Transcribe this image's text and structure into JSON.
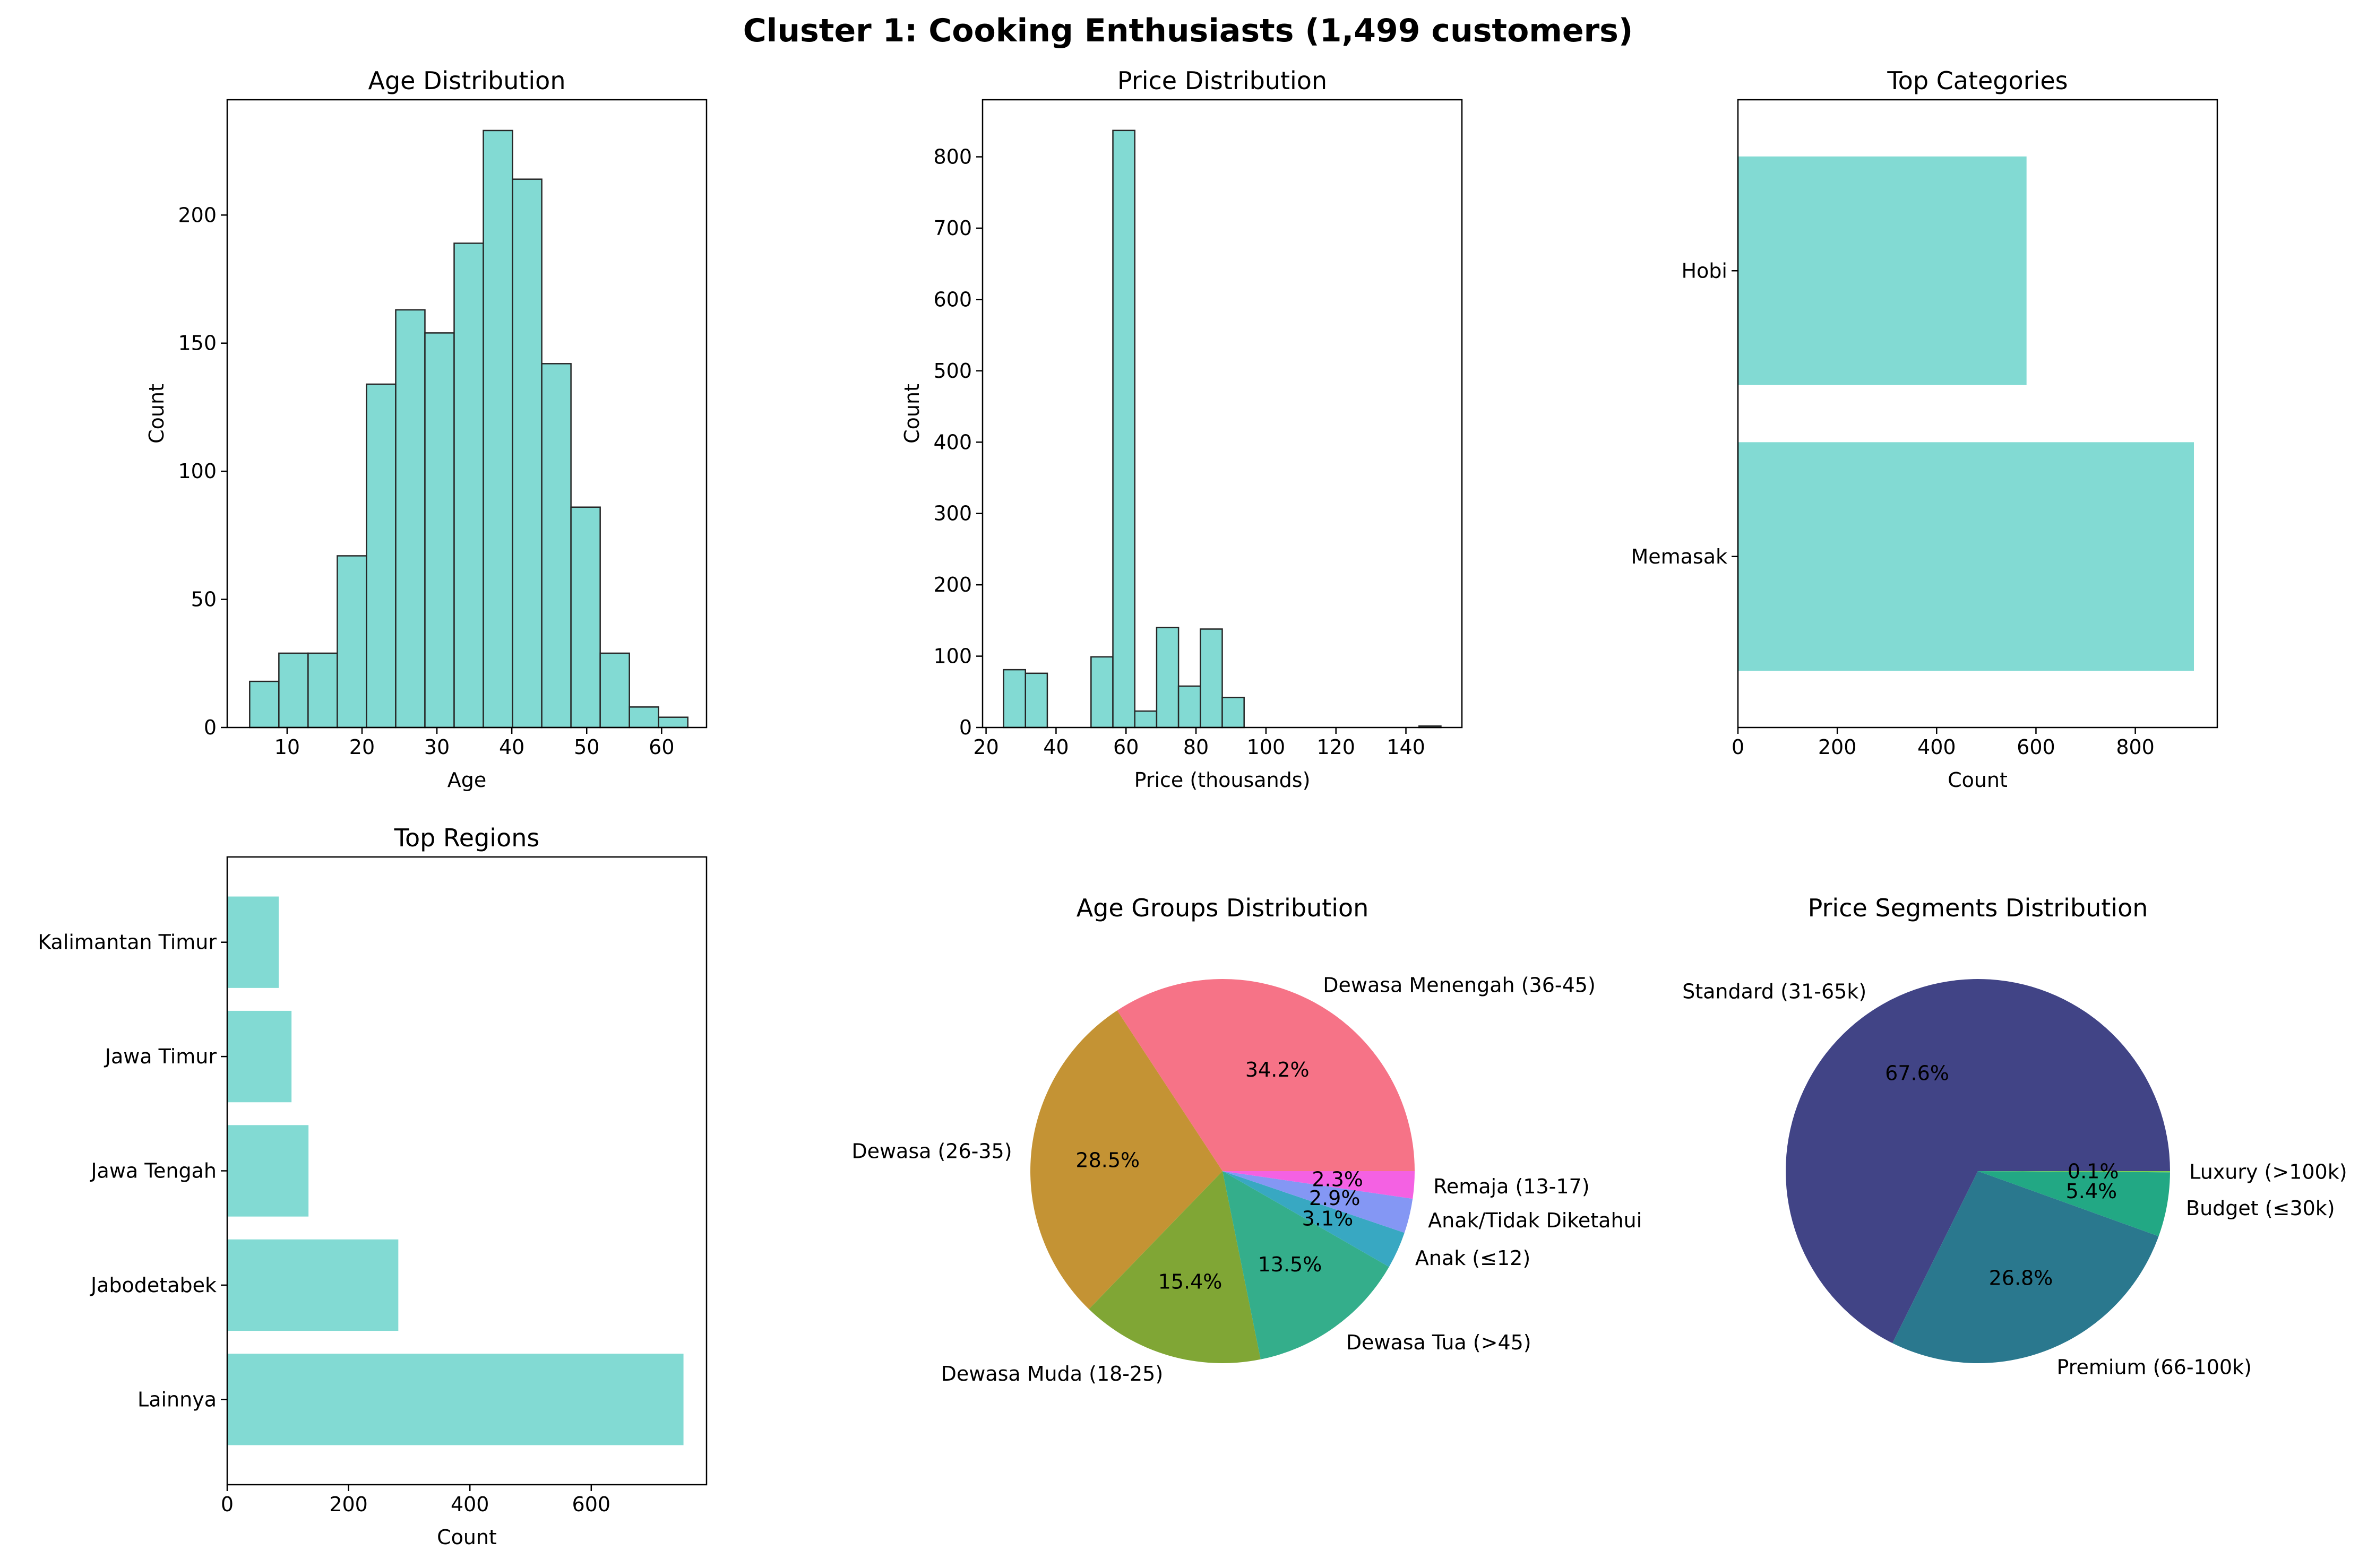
{
  "figure_title": "Cluster 1: Cooking Enthusiasts (1,499 customers)",
  "colors": {
    "teal": "#82dad3",
    "bar_edge": "#262626"
  },
  "chart_data": [
    {
      "id": "age-hist",
      "type": "bar",
      "title": "Age Distribution",
      "xlabel": "Age",
      "ylabel": "Count",
      "bin_edges": [
        5,
        8.9,
        12.8,
        16.7,
        20.6,
        24.5,
        28.4,
        32.3,
        36.2,
        40.1,
        44,
        47.9,
        51.8,
        55.7,
        59.6,
        63.5
      ],
      "values": [
        18,
        29,
        29,
        67,
        134,
        163,
        154,
        189,
        233,
        214,
        142,
        86,
        29,
        8,
        4
      ],
      "xlim": [
        2,
        66
      ],
      "ylim": [
        0,
        245
      ],
      "xticks": [
        10,
        20,
        30,
        40,
        50,
        60
      ],
      "yticks": [
        0,
        50,
        100,
        150,
        200
      ]
    },
    {
      "id": "price-hist",
      "type": "bar",
      "title": "Price Distribution",
      "xlabel": "Price (thousands)",
      "ylabel": "Count",
      "bin_edges": [
        25,
        31.25,
        37.5,
        43.75,
        50,
        56.25,
        62.5,
        68.75,
        75,
        81.25,
        87.5,
        93.75,
        100,
        106.25,
        112.5,
        118.75,
        125,
        131.25,
        137.5,
        143.75,
        150
      ],
      "values": [
        81,
        76,
        0,
        0,
        99,
        837,
        23,
        140,
        58,
        138,
        42,
        0,
        0,
        0,
        0,
        0,
        0,
        0,
        0,
        2
      ],
      "xlim": [
        19,
        156
      ],
      "ylim": [
        0,
        880
      ],
      "xticks": [
        20,
        40,
        60,
        80,
        100,
        120,
        140
      ],
      "yticks": [
        0,
        100,
        200,
        300,
        400,
        500,
        600,
        700,
        800
      ]
    },
    {
      "id": "categories-bar",
      "type": "bar",
      "orientation": "horizontal",
      "title": "Top Categories",
      "xlabel": "Count",
      "categories": [
        "Memasak",
        "Hobi"
      ],
      "values": [
        918,
        581
      ],
      "xlim": [
        0,
        965
      ],
      "xticks": [
        0,
        200,
        400,
        600,
        800
      ]
    },
    {
      "id": "regions-bar",
      "type": "bar",
      "orientation": "horizontal",
      "title": "Top Regions",
      "xlabel": "Count",
      "categories": [
        "Lainnya",
        "Jabodetabek",
        "Jawa Tengah",
        "Jawa Timur",
        "Kalimantan Timur"
      ],
      "values": [
        752,
        282,
        134,
        106,
        85
      ],
      "xlim": [
        0,
        790
      ],
      "xticks": [
        0,
        200,
        400,
        600
      ]
    },
    {
      "id": "age-groups-pie",
      "type": "pie",
      "title": "Age Groups Distribution",
      "labels": [
        "Dewasa Menengah (36-45)",
        "Dewasa (26-35)",
        "Dewasa Muda (18-25)",
        "Dewasa Tua (>45)",
        "Anak (≤12)",
        "Anak/Tidak Diketahui",
        "Remaja (13-17)"
      ],
      "values": [
        34.2,
        28.5,
        15.4,
        13.5,
        3.1,
        2.9,
        2.3
      ],
      "pct_labels": [
        "34.2%",
        "28.5%",
        "15.4%",
        "13.5%",
        "3.1%",
        "2.9%",
        "2.3%"
      ],
      "colors": [
        "#f67387",
        "#c49334",
        "#80a635",
        "#34ae8b",
        "#38a8c2",
        "#8497f4",
        "#f461e3"
      ]
    },
    {
      "id": "price-segments-pie",
      "type": "pie",
      "title": "Price Segments Distribution",
      "labels": [
        "Standard (31-65k)",
        "Premium (66-100k)",
        "Budget (≤30k)",
        "Luxury (>100k)"
      ],
      "values": [
        67.6,
        26.8,
        5.4,
        0.1
      ],
      "pct_labels": [
        "67.6%",
        "26.8%",
        "5.4%",
        "0.1%"
      ],
      "colors": [
        "#414486",
        "#2a788e",
        "#22a884",
        "#7ad151"
      ]
    }
  ]
}
